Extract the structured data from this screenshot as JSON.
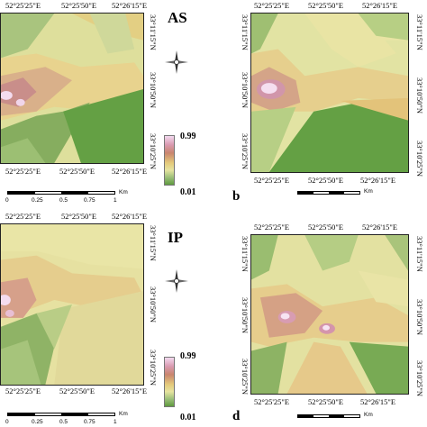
{
  "panels": {
    "tl": {
      "title": "AS",
      "top_ticks": [
        "52°25'25\"E",
        "52°25'50\"E",
        "52°26'15\"E"
      ],
      "bottom_ticks": [
        "52°25'25\"E",
        "52°25'50\"E",
        "52°26'15\"E"
      ],
      "right_ticks": [
        "33°11'15\"N",
        "33°10'50\"N",
        "33°10'25\"N"
      ]
    },
    "tr": {
      "label": "",
      "top_ticks": [
        "52°25'25\"E",
        "52°25'50\"E",
        "52°26'15\"E"
      ],
      "bottom_ticks": [
        "52°25'25\"E",
        "52°25'50\"E",
        "52°26'15\"E"
      ],
      "left_ticks": [
        "33°11'15\"N",
        "33°10'50\"N",
        "33°10'25\"N"
      ],
      "right_ticks": [
        "33°11'15\"N",
        "33°10'50\"N",
        "33°10'25\"N"
      ],
      "panel_label": "b"
    },
    "bl": {
      "title": "IP",
      "top_ticks": [
        "52°25'25\"E",
        "52°25'50\"E",
        "52°26'15\"E"
      ],
      "bottom_ticks": [
        "52°25'25\"E",
        "52°25'50\"E",
        "52°26'15\"E"
      ],
      "right_ticks": [
        "33°11'15\"N",
        "33°10'50\"N",
        "33°10'25\"N"
      ]
    },
    "br": {
      "top_ticks": [
        "52°25'25\"E",
        "52°25'50\"E",
        "52°26'15\"E"
      ],
      "bottom_ticks": [
        "52°25'25\"E",
        "52°25'50\"E",
        "52°26'15\"E"
      ],
      "left_ticks": [
        "33°11'15\"N",
        "33°10'50\"N",
        "33°10'25\"N"
      ],
      "right_ticks": [
        "33°11'15\"N",
        "33°10'50\"N",
        "33°10'25\"N"
      ],
      "panel_label": "d"
    }
  },
  "legend": {
    "max": "0.99",
    "min": "0.01"
  },
  "scale": {
    "labels": [
      "0",
      "0.25",
      "0.5",
      "0.75",
      "1"
    ],
    "unit": "Km"
  },
  "colors": {
    "high": "#f3d9ef",
    "mid_high": "#c9856e",
    "mid": "#e6e4a0",
    "low_mid": "#9dc07a",
    "low": "#5e9a3f"
  }
}
